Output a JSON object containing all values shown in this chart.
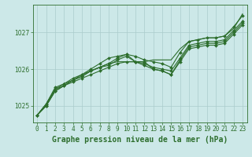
{
  "title": "Graphe pression niveau de la mer (hPa)",
  "x_hours": [
    0,
    1,
    2,
    3,
    4,
    5,
    6,
    7,
    8,
    9,
    10,
    11,
    12,
    13,
    14,
    15,
    16,
    17,
    18,
    19,
    20,
    21,
    22,
    23
  ],
  "series": [
    [
      1024.75,
      1025.0,
      1025.4,
      1025.55,
      1025.65,
      1025.75,
      1025.85,
      1025.95,
      1026.05,
      1026.15,
      1026.2,
      1026.2,
      1026.2,
      1026.0,
      1025.95,
      1025.85,
      1026.2,
      1026.55,
      1026.6,
      1026.65,
      1026.65,
      1026.7,
      1026.95,
      1027.2
    ],
    [
      1024.75,
      1025.0,
      1025.4,
      1025.55,
      1025.7,
      1025.8,
      1025.95,
      1026.05,
      1026.1,
      1026.25,
      1026.35,
      1026.2,
      1026.1,
      1026.0,
      1025.95,
      1025.85,
      1026.25,
      1026.6,
      1026.65,
      1026.7,
      1026.7,
      1026.75,
      1027.0,
      1027.25
    ],
    [
      1024.75,
      1025.05,
      1025.45,
      1025.6,
      1025.7,
      1025.8,
      1025.95,
      1026.05,
      1026.15,
      1026.3,
      1026.4,
      1026.2,
      1026.15,
      1026.05,
      1026.0,
      1025.95,
      1026.3,
      1026.65,
      1026.7,
      1026.75,
      1026.75,
      1026.8,
      1027.05,
      1027.3
    ],
    [
      1024.75,
      1025.05,
      1025.5,
      1025.6,
      1025.75,
      1025.85,
      1026.0,
      1026.15,
      1026.3,
      1026.35,
      1026.4,
      1026.35,
      1026.25,
      1026.2,
      1026.15,
      1026.05,
      1026.45,
      1026.75,
      1026.8,
      1026.85,
      1026.85,
      1026.9,
      1027.15,
      1027.45
    ]
  ],
  "straight_series": [
    1024.75,
    1025.05,
    1025.45,
    1025.55,
    1025.7,
    1025.85,
    1025.95,
    1026.05,
    1026.15,
    1026.2,
    1026.2,
    1026.2,
    1026.2,
    1026.25,
    1026.25,
    1026.25,
    1026.55,
    1026.75,
    1026.8,
    1026.85,
    1026.85,
    1026.9,
    1027.1,
    1027.5
  ],
  "line_color": "#2d6e2d",
  "marker": "D",
  "marker_size": 2.0,
  "linewidth": 0.8,
  "ylim": [
    1024.55,
    1027.75
  ],
  "yticks": [
    1025,
    1026,
    1027
  ],
  "xticks": [
    0,
    1,
    2,
    3,
    4,
    5,
    6,
    7,
    8,
    9,
    10,
    11,
    12,
    13,
    14,
    15,
    16,
    17,
    18,
    19,
    20,
    21,
    22,
    23
  ],
  "bg_color": "#cce8e8",
  "grid_color": "#aacccc",
  "tick_label_fontsize": 5.5,
  "title_fontsize": 7,
  "title_color": "#2d6e2d",
  "title_fontweight": "bold"
}
